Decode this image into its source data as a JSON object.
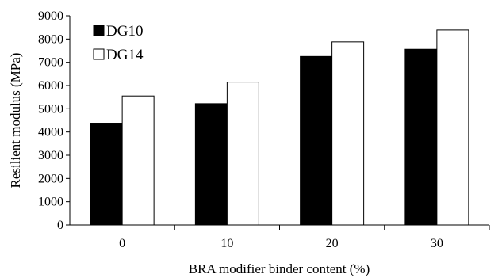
{
  "chart_data": {
    "type": "bar",
    "categories": [
      "0",
      "10",
      "20",
      "30"
    ],
    "series": [
      {
        "name": "DG10",
        "values": [
          4380,
          5220,
          7250,
          7560
        ],
        "color": "#000000"
      },
      {
        "name": "DG14",
        "values": [
          5550,
          6150,
          7880,
          8390
        ],
        "color": "#ffffff"
      }
    ],
    "title": "",
    "xlabel": "BRA modifier binder content (%)",
    "ylabel": "Resilient modulus (MPa)",
    "ylim": [
      0,
      9000
    ],
    "yticks": [
      0,
      1000,
      2000,
      3000,
      4000,
      5000,
      6000,
      7000,
      8000,
      9000
    ],
    "grid": false,
    "legend_position": "top-left"
  }
}
